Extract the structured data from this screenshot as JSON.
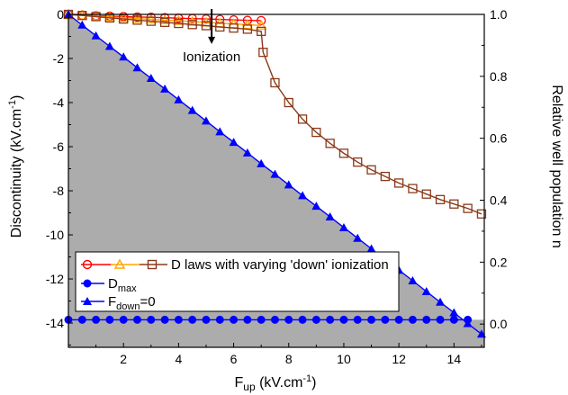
{
  "chart_data": {
    "type": "line",
    "xlabel": {
      "main": "F",
      "sub": "up",
      "rest": " (kV.cm",
      "sup": "-1",
      "end": ")"
    },
    "ylabel_left": {
      "main": "Discontinuity (kV.cm",
      "sup": "-1",
      "end": ")"
    },
    "ylabel_right": "Relative well population n",
    "xlim": [
      0,
      15.1
    ],
    "ylim_left": [
      -15.1,
      0
    ],
    "ylim_right": [
      -0.075,
      1.0
    ],
    "x_ticks": [
      2,
      4,
      6,
      8,
      10,
      12,
      14
    ],
    "y_left_ticks": [
      0,
      -2,
      -4,
      -6,
      -8,
      -10,
      -12,
      -14
    ],
    "y_right_ticks": [
      0.0,
      0.2,
      0.4,
      0.6,
      0.8,
      1.0
    ],
    "y_right_tick_labels": [
      "0.0",
      "0.2",
      "0.4",
      "0.6",
      "0.8",
      "1.0"
    ],
    "colors": {
      "red": "#ff0000",
      "orange": "#ffa500",
      "brown": "#8b3a1a",
      "blue": "#0000ff",
      "shade": "#acacac"
    },
    "annotation": {
      "text": "Ionization",
      "x": 5.2,
      "y_top": 0,
      "y_bottom": -1.3
    },
    "shaded_region": {
      "x": [
        0,
        14.3,
        15.1
      ],
      "y": [
        0,
        -13.85,
        -13.85
      ]
    },
    "series": [
      {
        "axis": "left",
        "color": "red",
        "marker": "circle-open",
        "x": [
          0,
          0.5,
          1,
          1.5,
          2,
          2.5,
          3,
          3.5,
          4,
          4.5,
          5,
          5.5,
          6,
          6.5,
          7
        ],
        "y": [
          0,
          -0.03,
          -0.06,
          -0.08,
          -0.1,
          -0.12,
          -0.13,
          -0.15,
          -0.17,
          -0.19,
          -0.21,
          -0.23,
          -0.25,
          -0.27,
          -0.28
        ]
      },
      {
        "axis": "left",
        "color": "orange",
        "marker": "triangle-open",
        "x": [
          0,
          0.5,
          1,
          1.5,
          2,
          2.5,
          3,
          3.5,
          4,
          4.5,
          5,
          5.5,
          6,
          6.5,
          7
        ],
        "y": [
          0,
          -0.04,
          -0.08,
          -0.12,
          -0.15,
          -0.19,
          -0.22,
          -0.26,
          -0.29,
          -0.33,
          -0.36,
          -0.4,
          -0.43,
          -0.47,
          -0.5
        ]
      },
      {
        "axis": "left",
        "color": "brown",
        "marker": "square-open",
        "x": [
          0,
          0.5,
          1,
          1.5,
          2,
          2.5,
          3,
          3.5,
          4,
          4.5,
          5,
          5.5,
          6,
          6.5,
          7,
          7.07,
          7.5,
          8,
          8.5,
          9,
          9.5,
          10,
          10.5,
          11,
          11.5,
          12,
          12.5,
          13,
          13.5,
          14,
          14.5,
          15
        ],
        "y": [
          0,
          -0.05,
          -0.1,
          -0.16,
          -0.21,
          -0.26,
          -0.31,
          -0.36,
          -0.41,
          -0.46,
          -0.51,
          -0.57,
          -0.62,
          -0.67,
          -0.77,
          -1.72,
          -3.1,
          -4.0,
          -4.75,
          -5.35,
          -5.85,
          -6.3,
          -6.7,
          -7.05,
          -7.35,
          -7.65,
          -7.9,
          -8.15,
          -8.4,
          -8.6,
          -8.8,
          -9.05
        ]
      },
      {
        "axis": "left",
        "color": "blue",
        "marker": "circle-filled",
        "x": [
          0,
          0.5,
          1,
          1.5,
          2,
          2.5,
          3,
          3.5,
          4,
          4.5,
          5,
          5.5,
          6,
          6.5,
          7,
          7.5,
          8,
          8.5,
          9,
          9.5,
          10,
          10.5,
          11,
          11.5,
          12,
          12.5,
          13,
          13.5,
          14,
          14.5
        ],
        "y": [
          -13.85,
          -13.85,
          -13.85,
          -13.85,
          -13.85,
          -13.85,
          -13.85,
          -13.85,
          -13.85,
          -13.85,
          -13.85,
          -13.85,
          -13.85,
          -13.85,
          -13.85,
          -13.85,
          -13.85,
          -13.85,
          -13.85,
          -13.85,
          -13.85,
          -13.85,
          -13.85,
          -13.85,
          -13.85,
          -13.85,
          -13.85,
          -13.85,
          -13.85,
          -13.85
        ]
      },
      {
        "axis": "left",
        "color": "blue",
        "marker": "triangle-filled",
        "x": [
          0,
          0.5,
          1,
          1.5,
          2,
          2.5,
          3,
          3.5,
          4,
          4.5,
          5,
          5.5,
          6,
          6.5,
          7,
          7.5,
          8,
          8.5,
          9,
          9.5,
          10,
          10.5,
          11,
          11.5,
          12,
          12.5,
          13,
          13.5,
          14,
          14.5,
          15
        ],
        "y": [
          0,
          -0.48,
          -0.97,
          -1.45,
          -1.93,
          -2.42,
          -2.9,
          -3.38,
          -3.87,
          -4.35,
          -4.83,
          -5.32,
          -5.8,
          -6.28,
          -6.77,
          -7.25,
          -7.73,
          -8.22,
          -8.7,
          -9.18,
          -9.67,
          -10.15,
          -10.63,
          -11.12,
          -11.6,
          -12.08,
          -12.57,
          -13.05,
          -13.53,
          -14.02,
          -14.5
        ]
      }
    ],
    "legend": [
      {
        "label": "D laws with varying 'down' ionization"
      },
      {
        "main": "D",
        "sub": "max"
      },
      {
        "main": "F",
        "sub": "down",
        "rest": "=0"
      }
    ]
  }
}
